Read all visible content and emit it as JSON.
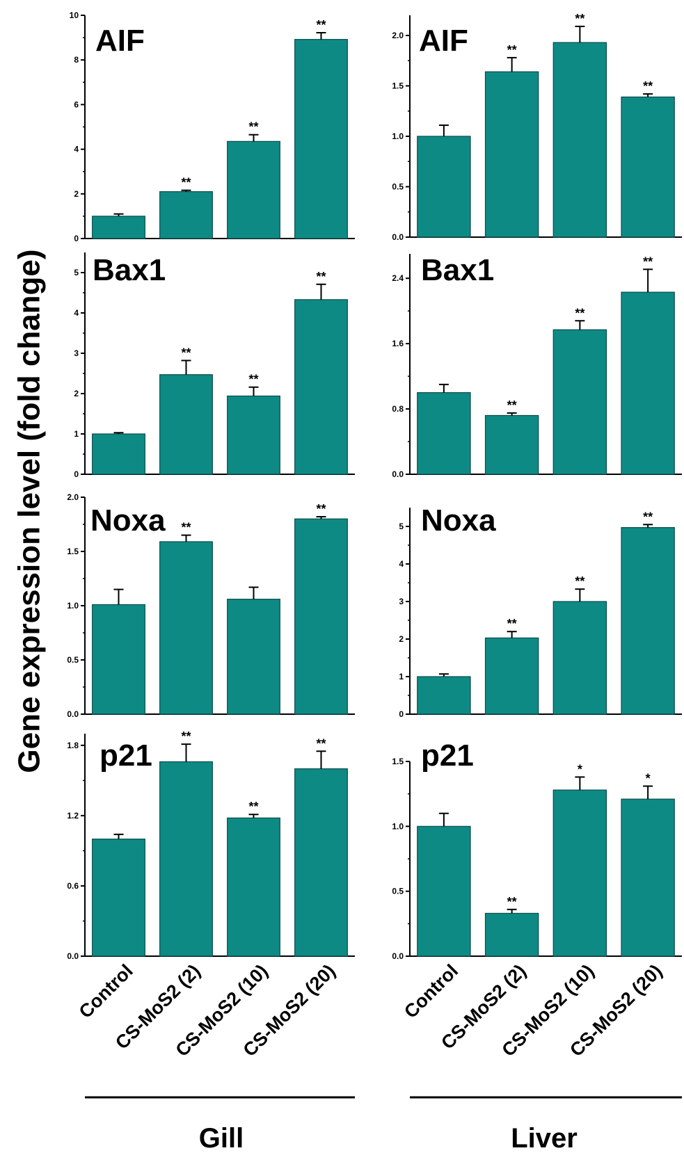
{
  "figure": {
    "y_axis_title": "Gene expression level (fold change)",
    "groups": [
      "Gill",
      "Liver"
    ]
  },
  "colors": {
    "bar_fill": "#0e8a85",
    "bar_stroke": "#0b4c49",
    "axis": "#000000"
  },
  "chart_data": [
    {
      "type": "bar",
      "title": "AIF",
      "group": "Gill",
      "categories": [
        "Control",
        "CS-MoS2 (2)",
        "CS-MoS2 (10)",
        "CS-MoS2 (20)"
      ],
      "values": [
        1.0,
        2.1,
        4.35,
        8.92
      ],
      "errors": [
        0.1,
        0.06,
        0.3,
        0.3
      ],
      "significance": [
        "",
        "**",
        "**",
        "**"
      ],
      "ylim": [
        0,
        10
      ],
      "yticks": [
        0,
        2,
        4,
        6,
        8,
        10
      ],
      "ytick_labels": [
        "0",
        "2",
        "4",
        "6",
        "8",
        "10"
      ]
    },
    {
      "type": "bar",
      "title": "AIF",
      "group": "Liver",
      "categories": [
        "Control",
        "CS-MoS2 (2)",
        "CS-MoS2 (10)",
        "CS-MoS2 (20)"
      ],
      "values": [
        1.0,
        1.64,
        1.93,
        1.39
      ],
      "errors": [
        0.11,
        0.14,
        0.16,
        0.03
      ],
      "significance": [
        "",
        "**",
        "**",
        "**"
      ],
      "ylim": [
        0,
        2.2
      ],
      "yticks": [
        0,
        0.5,
        1.0,
        1.5,
        2.0
      ],
      "ytick_labels": [
        "0.0",
        "0.5",
        "1.0",
        "1.5",
        "2.0"
      ]
    },
    {
      "type": "bar",
      "title": "Bax1",
      "group": "Gill",
      "categories": [
        "Control",
        "CS-MoS2 (2)",
        "CS-MoS2 (10)",
        "CS-MoS2 (20)"
      ],
      "values": [
        1.0,
        2.47,
        1.94,
        4.33
      ],
      "errors": [
        0.03,
        0.35,
        0.22,
        0.38
      ],
      "significance": [
        "",
        "**",
        "**",
        "**"
      ],
      "ylim": [
        0,
        5.5
      ],
      "yticks": [
        0,
        1,
        2,
        3,
        4,
        5
      ],
      "ytick_labels": [
        "0",
        "1",
        "2",
        "3",
        "4",
        "5"
      ]
    },
    {
      "type": "bar",
      "title": "Bax1",
      "group": "Liver",
      "categories": [
        "Control",
        "CS-MoS2 (2)",
        "CS-MoS2 (10)",
        "CS-MoS2 (20)"
      ],
      "values": [
        1.0,
        0.72,
        1.77,
        2.23
      ],
      "errors": [
        0.1,
        0.03,
        0.11,
        0.28
      ],
      "significance": [
        "",
        "**",
        "**",
        "**"
      ],
      "ylim": [
        0,
        2.7
      ],
      "yticks": [
        0,
        0.8,
        1.6,
        2.4
      ],
      "ytick_labels": [
        "0.0",
        "0.8",
        "1.6",
        "2.4"
      ]
    },
    {
      "type": "bar",
      "title": "Noxa",
      "group": "Gill",
      "categories": [
        "Control",
        "CS-MoS2 (2)",
        "CS-MoS2 (10)",
        "CS-MoS2 (20)"
      ],
      "values": [
        1.01,
        1.59,
        1.06,
        1.8
      ],
      "errors": [
        0.14,
        0.06,
        0.11,
        0.02
      ],
      "significance": [
        "",
        "**",
        "",
        "**"
      ],
      "ylim": [
        0,
        2.0
      ],
      "yticks": [
        0,
        0.5,
        1.0,
        1.5,
        2.0
      ],
      "ytick_labels": [
        "0.0",
        "0.5",
        "1.0",
        "1.5",
        "2.0"
      ]
    },
    {
      "type": "bar",
      "title": "Noxa",
      "group": "Liver",
      "categories": [
        "Control",
        "CS-MoS2 (2)",
        "CS-MoS2 (10)",
        "CS-MoS2 (20)"
      ],
      "values": [
        1.0,
        2.03,
        3.0,
        4.97
      ],
      "errors": [
        0.07,
        0.17,
        0.33,
        0.08
      ],
      "significance": [
        "",
        "**",
        "**",
        "**"
      ],
      "ylim": [
        0,
        5.5
      ],
      "yticks": [
        0,
        1,
        2,
        3,
        4,
        5
      ],
      "ytick_labels": [
        "0",
        "1",
        "2",
        "3",
        "4",
        "5"
      ]
    },
    {
      "type": "bar",
      "title": "p21",
      "group": "Gill",
      "categories": [
        "Control",
        "CS-MoS2 (2)",
        "CS-MoS2 (10)",
        "CS-MoS2 (20)"
      ],
      "values": [
        1.0,
        1.66,
        1.18,
        1.6
      ],
      "errors": [
        0.04,
        0.15,
        0.03,
        0.15
      ],
      "significance": [
        "",
        "**",
        "**",
        "**"
      ],
      "ylim": [
        0,
        1.9
      ],
      "yticks": [
        0,
        0.6,
        1.2,
        1.8
      ],
      "ytick_labels": [
        "0.0",
        "0.6",
        "1.2",
        "1.8"
      ]
    },
    {
      "type": "bar",
      "title": "p21",
      "group": "Liver",
      "categories": [
        "Control",
        "CS-MoS2 (2)",
        "CS-MoS2 (10)",
        "CS-MoS2 (20)"
      ],
      "values": [
        1.0,
        0.33,
        1.28,
        1.21
      ],
      "errors": [
        0.1,
        0.03,
        0.1,
        0.1
      ],
      "significance": [
        "",
        "**",
        "*",
        "*"
      ],
      "ylim": [
        0,
        1.5
      ],
      "yticks": [
        0,
        0.5,
        1.0,
        1.5
      ],
      "ytick_labels": [
        "0.0",
        "0.5",
        "1.0",
        "1.5"
      ]
    }
  ]
}
